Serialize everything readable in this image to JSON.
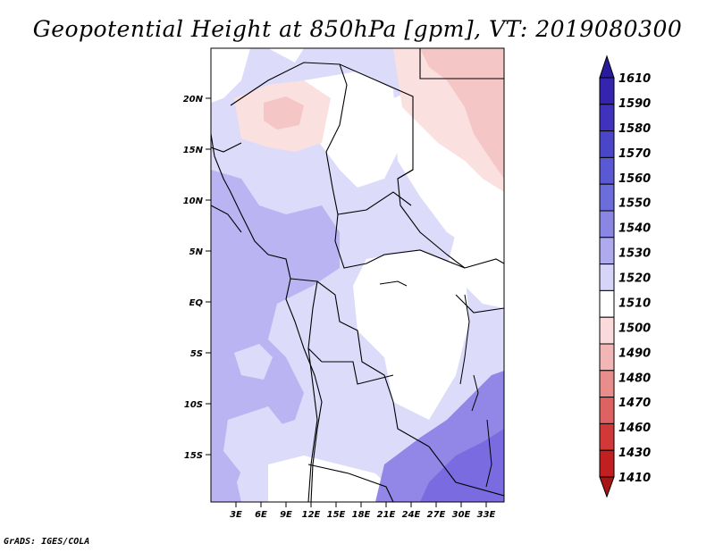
{
  "title": "Geopotential Height at 850hPa [gpm], VT: 2019080300",
  "credit": "GrADS: IGES/COLA",
  "map": {
    "x_ticks": [
      "3E",
      "6E",
      "9E",
      "12E",
      "15E",
      "18E",
      "21E",
      "24E",
      "27E",
      "30E",
      "33E"
    ],
    "y_ticks": [
      "20N",
      "15N",
      "10N",
      "5N",
      "EQ",
      "5S",
      "10S",
      "15S"
    ]
  },
  "colorbar": {
    "levels": [
      "1610",
      "1590",
      "1580",
      "1570",
      "1560",
      "1550",
      "1540",
      "1530",
      "1520",
      "1510",
      "1500",
      "1490",
      "1480",
      "1470",
      "1460",
      "1430",
      "1410"
    ],
    "colors": [
      "#2a1a9e",
      "#3424b0",
      "#3f33bd",
      "#4b46c8",
      "#5a58d2",
      "#6d6cdb",
      "#8a87e4",
      "#aeaaee",
      "#d6d4f8",
      "#ffffff",
      "#fadada",
      "#f3b6b6",
      "#e98c8c",
      "#df6262",
      "#d23838",
      "#c22020",
      "#a81414"
    ]
  },
  "colors": {
    "white": "#ffffff",
    "light_blue": "#dcdcfa",
    "mid_blue": "#bbb4f2",
    "deep_blue": "#9286e6",
    "deeper_blue": "#7a6be0",
    "light_red": "#fbe0e0",
    "mid_red": "#f5c6c6",
    "border": "#000000"
  }
}
